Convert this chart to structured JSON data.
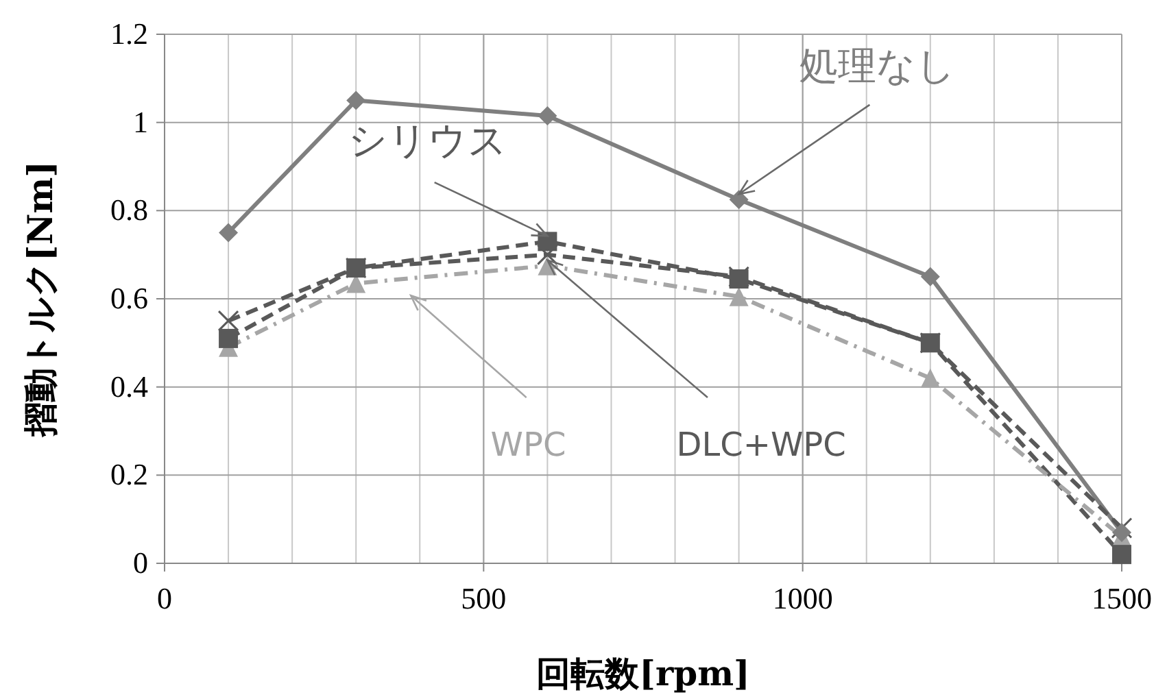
{
  "chart_data": {
    "type": "line",
    "xlabel": "回転数[rpm]",
    "ylabel": "摺動トルク[Nm]",
    "x": [
      100,
      300,
      600,
      900,
      1200,
      1500
    ],
    "series": [
      {
        "name": "処理なし",
        "color": "#7f7f7f",
        "marker": "diamond",
        "line_style": "solid",
        "values": [
          0.75,
          1.05,
          1.015,
          0.825,
          0.65,
          0.07
        ]
      },
      {
        "name": "シリウス",
        "color": "#595959",
        "marker": "square",
        "line_style": "dashed",
        "values": [
          0.51,
          0.67,
          0.73,
          0.645,
          0.5,
          0.02
        ]
      },
      {
        "name": "DLC+WPC",
        "color": "#595959",
        "marker": "cross",
        "line_style": "dashed",
        "values": [
          0.55,
          0.67,
          0.7,
          0.65,
          0.5,
          0.08
        ]
      },
      {
        "name": "WPC",
        "color": "#a6a6a6",
        "marker": "triangle",
        "line_style": "dashdot",
        "values": [
          0.49,
          0.635,
          0.675,
          0.605,
          0.42,
          0.06
        ]
      }
    ],
    "xlim": [
      0,
      1500
    ],
    "xticks": [
      0,
      500,
      1000,
      1500
    ],
    "ylim": [
      0,
      1.2
    ],
    "yticks": [
      0,
      0.2,
      0.4,
      0.6,
      0.8,
      1,
      1.2
    ],
    "grid": true
  }
}
